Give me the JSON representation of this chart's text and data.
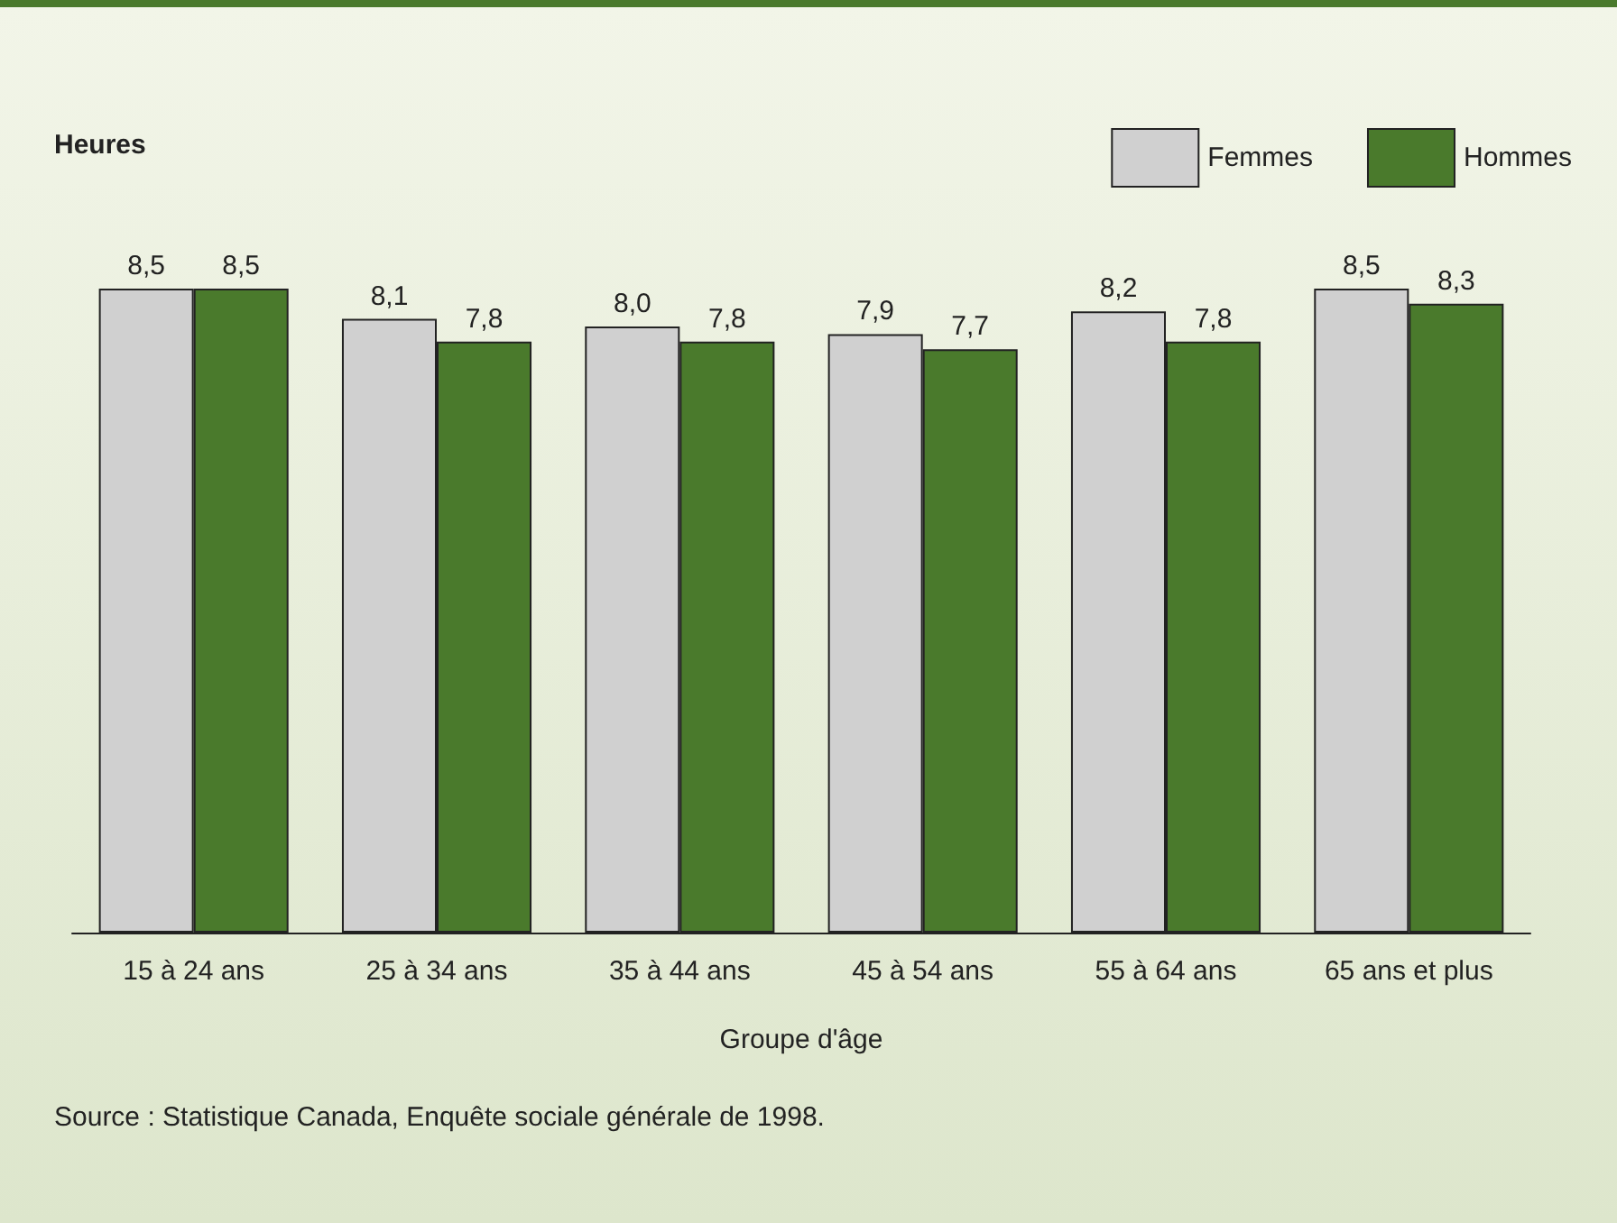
{
  "chart_data": {
    "type": "bar",
    "ylabel": "Heures",
    "xlabel": "Groupe d'âge",
    "categories": [
      "15 à 24 ans",
      "25 à 34 ans",
      "35 à 44 ans",
      "45 à 54 ans",
      "55 à 64 ans",
      "65 ans et plus"
    ],
    "series": [
      {
        "name": "Femmes",
        "color": "#d0d0d0",
        "values": [
          8.5,
          8.1,
          8.0,
          7.9,
          8.2,
          8.5
        ],
        "value_labels": [
          "8,5",
          "8,1",
          "8,0",
          "7,9",
          "8,2",
          "8,5"
        ]
      },
      {
        "name": "Hommes",
        "color": "#4a7a2c",
        "values": [
          8.5,
          7.8,
          7.8,
          7.7,
          7.8,
          8.3
        ],
        "value_labels": [
          "8,5",
          "7,8",
          "7,8",
          "7,7",
          "7,8",
          "8,3"
        ]
      }
    ],
    "tick_labels": "x",
    "legend": "top right",
    "grid": false,
    "annotations": [
      "Source : Statistique Canada, Enquête sociale générale de 1998."
    ]
  }
}
